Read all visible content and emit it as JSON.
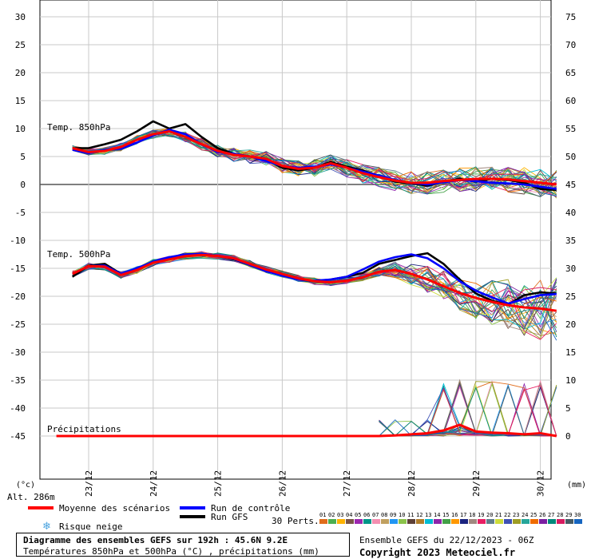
{
  "chart_data": {
    "type": "line",
    "x_ticks": [
      "23/12",
      "24/12",
      "25/12",
      "26/12",
      "27/12",
      "28/12",
      "29/12",
      "30/12"
    ],
    "left_axis": {
      "unit": "(°c)",
      "ticks": [
        30,
        25,
        20,
        15,
        10,
        5,
        0,
        -5,
        -10,
        -15,
        -20,
        -25,
        -30,
        -35,
        -40,
        -45
      ],
      "range": [
        -45,
        30
      ]
    },
    "right_axis": {
      "unit": "(mm)",
      "ticks": [
        75,
        70,
        65,
        60,
        55,
        50,
        45,
        40,
        35,
        30,
        25,
        20,
        15,
        10,
        5,
        0
      ],
      "range": [
        0,
        75
      ]
    },
    "grid": true,
    "panel_labels": {
      "t850": "Temp. 850hPa",
      "t500": "Temp. 500hPa",
      "precip": "Précipitations"
    },
    "altitude": "Alt. 286m",
    "x_days": [
      22.75,
      23,
      23.25,
      23.5,
      23.75,
      24,
      24.25,
      24.5,
      24.75,
      25,
      25.25,
      25.5,
      25.75,
      26,
      26.25,
      26.5,
      26.75,
      27,
      27.25,
      27.5,
      27.75,
      28,
      28.25,
      28.5,
      28.75,
      29,
      29.25,
      29.5,
      29.75,
      30,
      30.25
    ],
    "series": [
      {
        "name": "Moyenne des scénarios",
        "color": "#ff0000",
        "t850": [
          6.5,
          5.8,
          6.0,
          6.7,
          8.0,
          9.0,
          9.5,
          8.5,
          7.2,
          6.0,
          5.3,
          5.0,
          4.6,
          3.3,
          2.8,
          3.0,
          3.8,
          3.0,
          2.0,
          1.3,
          0.7,
          0.3,
          0.3,
          0.6,
          0.8,
          1.0,
          1.0,
          0.9,
          0.6,
          0.3,
          0.0
        ],
        "t500": [
          -16.0,
          -14.6,
          -14.7,
          -16.2,
          -15.3,
          -14.0,
          -13.4,
          -12.8,
          -12.6,
          -12.8,
          -13.2,
          -14.2,
          -15.2,
          -16.0,
          -16.8,
          -17.3,
          -17.5,
          -17.2,
          -16.6,
          -15.6,
          -15.3,
          -16.0,
          -17.0,
          -18.2,
          -19.4,
          -20.3,
          -21.0,
          -21.6,
          -22.0,
          -22.2,
          -22.6
        ],
        "precip": [
          0,
          0,
          0,
          0,
          0,
          0,
          0,
          0,
          0,
          0,
          0,
          0,
          0,
          0,
          0,
          0,
          0,
          0,
          0,
          0.0,
          0.1,
          0.3,
          0.5,
          1.0,
          2.0,
          0.8,
          0.6,
          0.5,
          0.3,
          0.5,
          0.0
        ]
      },
      {
        "name": "Run de contrôle",
        "color": "#0000ff",
        "t850": [
          6.2,
          5.6,
          6.2,
          6.4,
          7.5,
          8.8,
          9.8,
          9.0,
          7.2,
          5.8,
          5.5,
          5.0,
          4.2,
          3.3,
          3.0,
          3.2,
          3.6,
          3.0,
          2.3,
          1.6,
          0.8,
          0.3,
          0.0,
          0.4,
          0.8,
          0.6,
          0.3,
          0.2,
          0.0,
          -0.4,
          -0.8
        ],
        "t500": [
          -16.0,
          -14.6,
          -14.5,
          -16.0,
          -15.0,
          -13.8,
          -13.0,
          -12.5,
          -12.4,
          -12.8,
          -13.3,
          -14.4,
          -15.5,
          -16.3,
          -17.0,
          -17.2,
          -17.0,
          -16.5,
          -15.2,
          -13.8,
          -13.0,
          -12.5,
          -13.2,
          -15.0,
          -17.3,
          -19.0,
          -20.2,
          -21.3,
          -20.5,
          -19.8,
          -19.6
        ],
        "precip": [
          0,
          0,
          0,
          0,
          0,
          0,
          0,
          0,
          0,
          0,
          0,
          0,
          0,
          0,
          0,
          0,
          0,
          0,
          0,
          0,
          0,
          0.2,
          0.3,
          0.5,
          1.0,
          0.5,
          0.3,
          0.4,
          0.2,
          0.5,
          0.0
        ]
      },
      {
        "name": "Run GFS",
        "color": "#000000",
        "t850": [
          6.5,
          6.5,
          7.2,
          8.0,
          9.5,
          11.3,
          10.0,
          10.8,
          8.5,
          6.5,
          5.5,
          5.0,
          4.5,
          3.0,
          2.5,
          3.0,
          4.0,
          3.2,
          2.5,
          1.5,
          0.5,
          0.2,
          -0.2,
          0.5,
          1.0,
          0.5,
          1.0,
          0.8,
          0.3,
          -0.8,
          -1.0
        ],
        "t500": [
          -16.5,
          -14.5,
          -14.2,
          -16.0,
          -15.2,
          -13.8,
          -13.2,
          -12.6,
          -12.5,
          -12.8,
          -13.4,
          -14.4,
          -15.4,
          -16.2,
          -17.0,
          -17.3,
          -17.0,
          -16.5,
          -15.8,
          -14.2,
          -13.5,
          -12.8,
          -12.3,
          -14.2,
          -17.0,
          -19.5,
          -20.8,
          -21.5,
          -19.8,
          -19.3,
          -19.5
        ],
        "precip": [
          0,
          0,
          0,
          0,
          0,
          0,
          0,
          0,
          0,
          0,
          0,
          0,
          0,
          0,
          0,
          0,
          0,
          0,
          0,
          0,
          0,
          0,
          0.2,
          0.5,
          0.8,
          1.0,
          0.3,
          0.3,
          0.2,
          5.0,
          0.0
        ]
      }
    ],
    "ensemble": {
      "count": 30,
      "colors": [
        "#e06c1b",
        "#4caf50",
        "#ffb300",
        "#795548",
        "#9c27b0",
        "#009688",
        "#f48fb1",
        "#c0a060",
        "#2196f3",
        "#8bc34a",
        "#5d4037",
        "#b07d2a",
        "#00bcd4",
        "#8e24aa",
        "#43a047",
        "#ff9800",
        "#1a237e",
        "#a1887f",
        "#e91e63",
        "#607d8b",
        "#cddc39",
        "#3f51b5",
        "#9e9d24",
        "#26a69a",
        "#ef6c00",
        "#7b1fa2",
        "#00897b",
        "#d81b60",
        "#455a64",
        "#1565c0"
      ]
    },
    "legend": {
      "mean": "Moyenne des scénarios",
      "control": "Run de contrôle",
      "gfs": "Run GFS",
      "snow": "Risque neige",
      "perts": "30 Perts.",
      "pert_labels": [
        "01",
        "02",
        "03",
        "04",
        "05",
        "06",
        "07",
        "08",
        "09",
        "10",
        "11",
        "12",
        "13",
        "14",
        "15",
        "16",
        "17",
        "18",
        "19",
        "20",
        "21",
        "22",
        "23",
        "24",
        "25",
        "26",
        "27",
        "28",
        "29",
        "30"
      ]
    }
  },
  "footer": {
    "title": "Diagramme des ensembles GEFS sur 192h : 45.6N 9.2E",
    "subtitle": "Températures 850hPa et 500hPa (°C) , précipitations (mm)",
    "ensemble_date": "Ensemble GEFS du 22/12/2023 - 06Z",
    "copyright": "Copyright 2023 Meteociel.fr"
  },
  "colors": {
    "mean": "#ff0000",
    "control": "#0000ff",
    "gfs": "#000000",
    "grid": "#c8c8c8",
    "snow": "#4aa3df"
  }
}
